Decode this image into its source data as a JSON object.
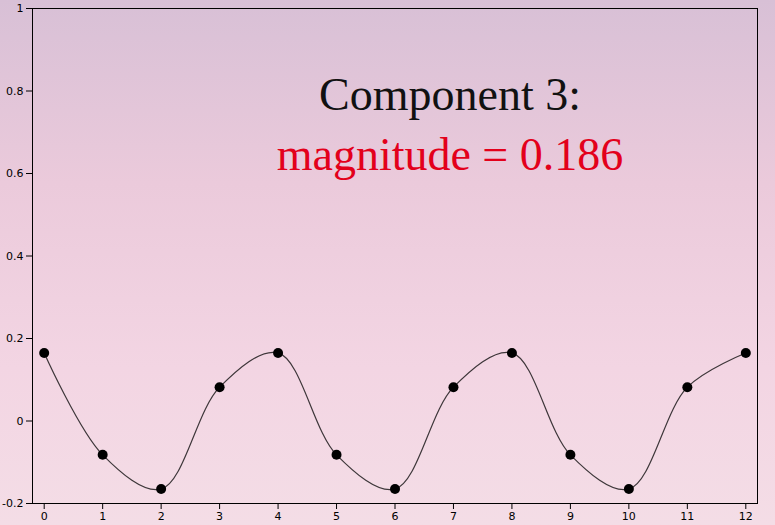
{
  "chart_data": {
    "type": "line",
    "title": "Component 3:",
    "subtitle": "magnitude = 0.186",
    "x": [
      0,
      1,
      2,
      3,
      4,
      5,
      6,
      7,
      8,
      9,
      10,
      11,
      12
    ],
    "series": [
      {
        "name": "Component 3",
        "color": "#000000",
        "marker": "circle",
        "line_style": "solid",
        "values": [
          0.165,
          -0.082,
          -0.165,
          0.082,
          0.165,
          -0.082,
          -0.165,
          0.082,
          0.165,
          -0.082,
          -0.165,
          0.082,
          0.165
        ]
      }
    ],
    "xlim": [
      -0.2,
      12.2
    ],
    "xticks": [
      0,
      1,
      2,
      3,
      4,
      5,
      6,
      7,
      8,
      9,
      10,
      11,
      12
    ],
    "ylim": [
      -0.2,
      1
    ],
    "yticks": [
      -0.2,
      0,
      0.2,
      0.4,
      0.6,
      0.8,
      1
    ],
    "grid": false
  }
}
